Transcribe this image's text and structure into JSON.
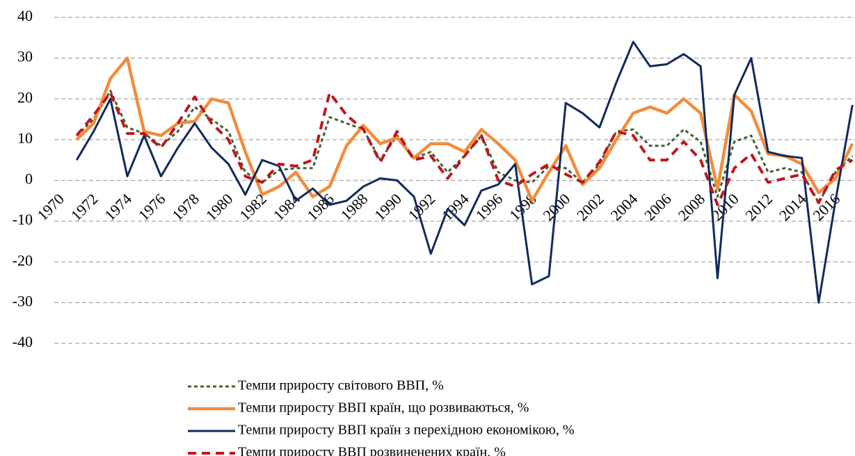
{
  "chart_data": {
    "type": "line",
    "categories": [
      "1970",
      null,
      "1972",
      null,
      "1974",
      null,
      "1976",
      null,
      "1978",
      null,
      "1980",
      null,
      "1982",
      null,
      "1984",
      null,
      "1986",
      null,
      "1988",
      null,
      "1990",
      null,
      "1992",
      null,
      "1994",
      null,
      "1996",
      null,
      "1998",
      null,
      "2000",
      null,
      "2002",
      null,
      "2004",
      null,
      "2006",
      null,
      "2008",
      null,
      "2010",
      null,
      "2012",
      null,
      "2014",
      null,
      "2016",
      null
    ],
    "ylim": [
      -40,
      40
    ],
    "yticks": [
      -40,
      -30,
      -20,
      -10,
      0,
      10,
      20,
      30,
      40
    ],
    "grid": true,
    "legend": "bottom",
    "series": [
      {
        "name": "Темпи приросту світового ВВП, %",
        "color": "#3f6232",
        "line_style": "dotted",
        "values": [
          null,
          11,
          15,
          22,
          13,
          11.5,
          8.5,
          12,
          18,
          15,
          12,
          2,
          -0.5,
          2.5,
          3,
          3,
          15.5,
          14,
          12.5,
          5,
          11,
          5.5,
          7,
          2,
          6,
          11,
          2,
          0,
          -0.5,
          3.5,
          3,
          -0.5,
          4,
          12,
          12.5,
          8.5,
          8.5,
          12.5,
          9.5,
          -4,
          9.5,
          11,
          2,
          3,
          2,
          -5.5,
          2,
          6
        ]
      },
      {
        "name": "Темпи приросту ВВП країн, що розвиваються, %",
        "color": "#f28c3c",
        "line_style": "solid",
        "values": [
          null,
          10,
          14,
          25,
          30,
          12,
          11,
          14,
          14.5,
          20,
          19,
          7,
          -3.5,
          -1.5,
          2,
          -4,
          -1.5,
          8.5,
          13.5,
          9,
          10.5,
          5.5,
          9,
          9,
          7,
          12.5,
          9,
          5,
          -5,
          2,
          8.5,
          -1,
          3,
          10,
          16.5,
          18,
          16.5,
          20,
          16.5,
          -2,
          21,
          17,
          6.5,
          6,
          4,
          -3,
          0.5,
          9
        ]
      },
      {
        "name": "Темпи приросту ВВП країн з перехідною економікою, %",
        "color": "#0f2a5c",
        "line_style": "solid-thin",
        "values": [
          null,
          5,
          12,
          20,
          1,
          11,
          1,
          8,
          14,
          8,
          4,
          -3.5,
          5,
          3.5,
          -5,
          -2,
          -6,
          -5,
          -1.5,
          0.5,
          0,
          -4,
          -18,
          -7,
          -11,
          -2.5,
          -1,
          4,
          -25.5,
          -23.5,
          19,
          16.5,
          13,
          24,
          34,
          28,
          28.5,
          31,
          28,
          -24,
          21,
          30,
          7,
          6,
          5.5,
          -30,
          -5,
          18.5
        ]
      },
      {
        "name": "Темпи приросту ВВП  розвиненених країн, %",
        "color": "#c0161d",
        "line_style": "dashed",
        "values": [
          null,
          11,
          16,
          21.5,
          11.5,
          11.5,
          8,
          14,
          20.5,
          14,
          10,
          1,
          -0.5,
          4,
          3.5,
          5,
          21.5,
          16,
          12.5,
          4.5,
          12,
          5,
          6,
          0.5,
          6,
          11,
          0,
          -1.5,
          1.5,
          4,
          1.5,
          -0.5,
          4.5,
          12,
          11,
          5,
          5,
          9.5,
          5,
          -6,
          3,
          6.5,
          -0.5,
          0.5,
          1.5,
          -5.5,
          2.5,
          5
        ]
      }
    ]
  }
}
